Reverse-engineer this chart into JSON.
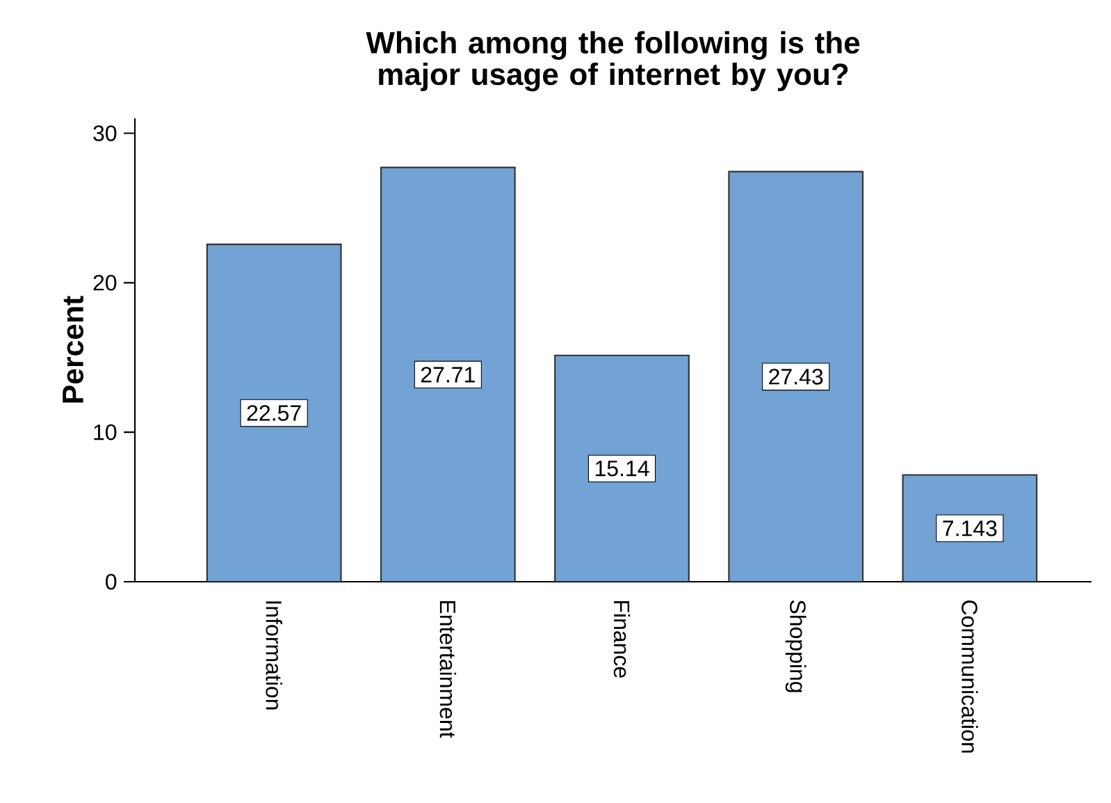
{
  "chart_data": {
    "type": "bar",
    "title": "Which among the following is the major usage of internet by you?",
    "ylabel": "Percent",
    "categories": [
      "Information",
      "Entertainment",
      "Finance",
      "Shopping",
      "Communication"
    ],
    "values": [
      22.57,
      27.71,
      15.14,
      27.43,
      7.143
    ],
    "color": "#73a2d4",
    "ylim": [
      0,
      31
    ],
    "yticks": [
      0,
      10,
      20,
      30
    ],
    "data_labels": true,
    "grid": false
  }
}
